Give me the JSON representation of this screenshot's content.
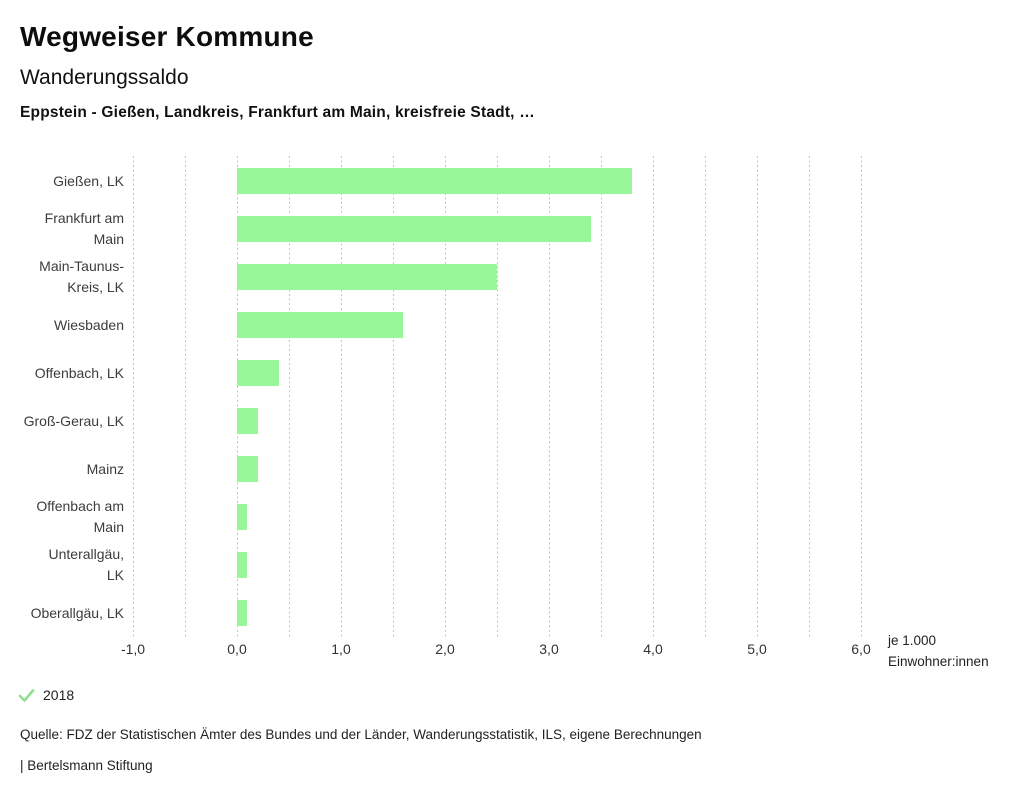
{
  "header": {
    "title": "Wegweiser Kommune",
    "subtitle": "Wanderungssaldo",
    "selection": "Eppstein - Gießen, Landkreis, Frankfurt am Main, kreisfreie Stadt, …"
  },
  "chart_data": {
    "type": "bar",
    "orientation": "horizontal",
    "title": "Wanderungssaldo",
    "categories": [
      "Gießen, LK",
      "Frankfurt am Main",
      "Main-Taunus-Kreis, LK",
      "Wiesbaden",
      "Offenbach, LK",
      "Groß-Gerau, LK",
      "Mainz",
      "Offenbach am Main",
      "Unterallgäu, LK",
      "Oberallgäu, LK"
    ],
    "category_label_lines": [
      [
        "Gießen, LK"
      ],
      [
        "Frankfurt am",
        "Main"
      ],
      [
        "Main-Taunus-",
        "Kreis, LK"
      ],
      [
        "Wiesbaden"
      ],
      [
        "Offenbach, LK"
      ],
      [
        "Groß-Gerau, LK"
      ],
      [
        "Mainz"
      ],
      [
        "Offenbach am",
        "Main"
      ],
      [
        "Unterallgäu,",
        "LK"
      ],
      [
        "Oberallgäu, LK"
      ]
    ],
    "values": [
      3.8,
      3.4,
      2.5,
      1.6,
      0.4,
      0.2,
      0.2,
      0.1,
      0.1,
      0.1
    ],
    "xlim": [
      -1.0,
      6.0
    ],
    "x_ticks": [
      -1,
      0,
      1,
      2,
      3,
      4,
      5,
      6
    ],
    "x_tick_labels": [
      "-1,0",
      "0,0",
      "1,0",
      "2,0",
      "3,0",
      "4,0",
      "5,0",
      "6,0"
    ],
    "gridline_step": 0.5,
    "grid": true,
    "unit_label_lines": [
      "je 1.000",
      "Einwohner:innen"
    ],
    "bar_color": "#98f798",
    "legend_position": "bottom-left"
  },
  "legend": {
    "year": "2018",
    "check_color": "#8ee08e",
    "marker": "check-icon"
  },
  "footer": {
    "source": "Quelle: FDZ der Statistischen Ämter des Bundes und der Länder, Wanderungsstatistik, ILS, eigene Berechnungen",
    "branding": "| Bertelsmann Stiftung"
  }
}
